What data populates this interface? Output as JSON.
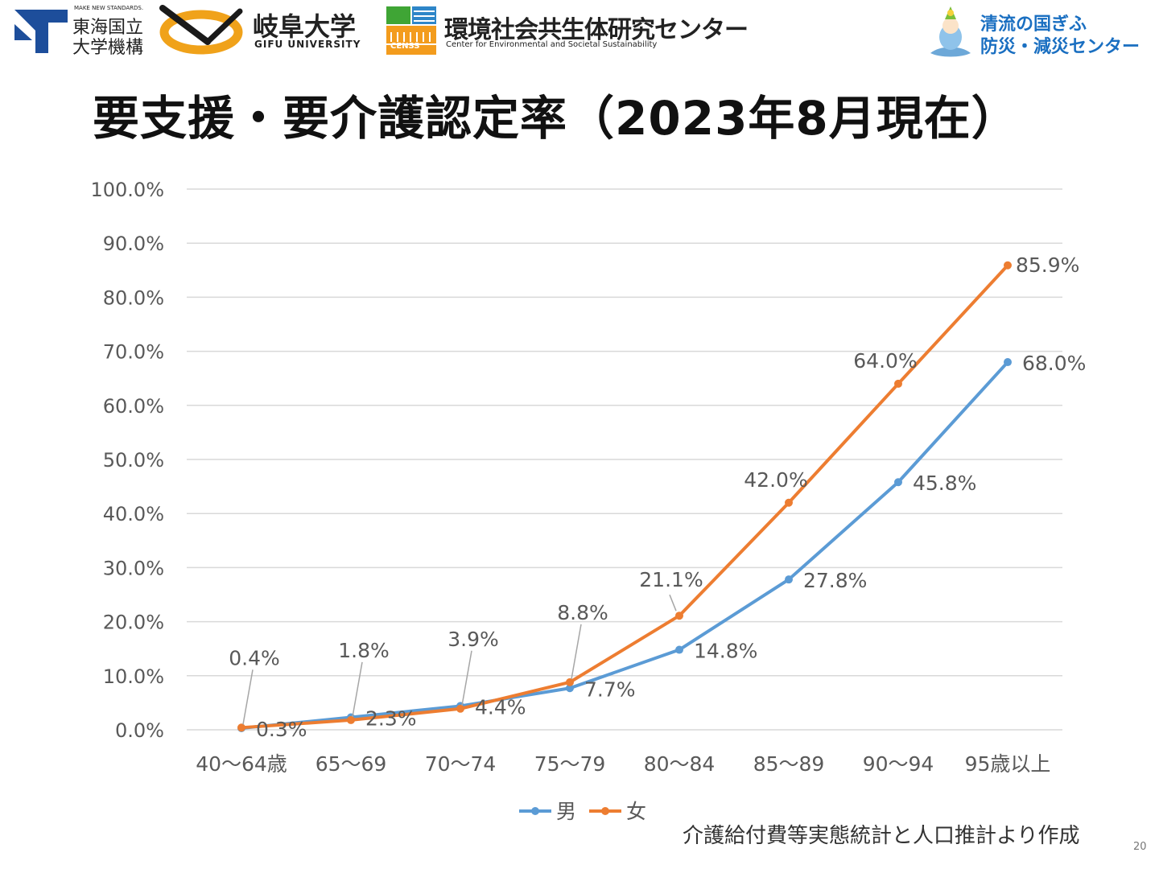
{
  "header": {
    "tokai_small": "MAKE NEW STANDARDS.",
    "tokai_name_1": "東海国立",
    "tokai_name_2": "大学機構",
    "gifu_name": "岐阜大学",
    "gifu_en": "GIFU UNIVERSITY",
    "censs_mark": "CENSS",
    "censs_name": "環境社会共生体研究センター",
    "censs_en": "Center for Environmental and Societal Sustainability",
    "right_name_1": "清流の国ぎふ",
    "right_name_2": "防災・減災センター"
  },
  "page_title": "要支援・要介護認定率（2023年8月現在）",
  "source_note": "介護給付費等実態統計と人口推計より作成",
  "page_number": "20",
  "colors": {
    "male": "#5b9bd5",
    "female": "#ed7d31",
    "grid": "#d9d9d9",
    "tick_text": "#595959"
  },
  "chart_data": {
    "type": "line",
    "categories": [
      "40～64歳",
      "65～69",
      "70～74",
      "75～79",
      "80～84",
      "85～89",
      "90～94",
      "95歳以上"
    ],
    "series": [
      {
        "name": "男",
        "values": [
          0.3,
          2.3,
          4.4,
          7.7,
          14.8,
          27.8,
          45.8,
          68.0
        ],
        "labels": [
          "0.3%",
          "2.3%",
          "4.4%",
          "7.7%",
          "14.8%",
          "27.8%",
          "45.8%",
          "68.0%"
        ]
      },
      {
        "name": "女",
        "values": [
          0.4,
          1.8,
          3.9,
          8.8,
          21.1,
          42.0,
          64.0,
          85.9
        ],
        "labels": [
          "0.4%",
          "1.8%",
          "3.9%",
          "8.8%",
          "21.1%",
          "42.0%",
          "64.0%",
          "85.9%"
        ]
      }
    ],
    "ylim": [
      0,
      100
    ],
    "yticks": [
      "0.0%",
      "10.0%",
      "20.0%",
      "30.0%",
      "40.0%",
      "50.0%",
      "60.0%",
      "70.0%",
      "80.0%",
      "90.0%",
      "100.0%"
    ],
    "grid": true,
    "legend": "bottom"
  }
}
